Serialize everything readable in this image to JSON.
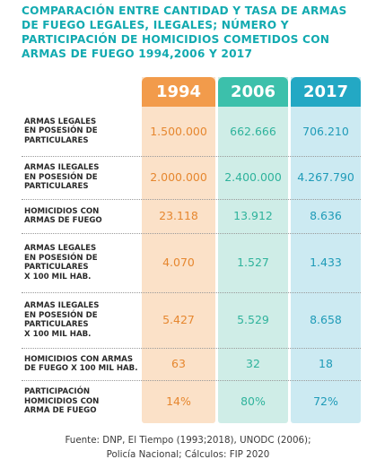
{
  "title": "COMPARACIÓN ENTRE CANTIDAD Y TASA DE ARMAS DE FUEGO LEGALES, ILEGALES; NÚMERO Y PARTICIPACIÓN DE HOMICIDIOS COMETIDOS CON ARMAS DE FUEGO 1994,2006 Y 2017",
  "colors": {
    "title": "#12aab0",
    "col_1994_header": "#f29b4b",
    "col_2006_header": "#3cc0ab",
    "col_2017_header": "#23a8c4",
    "col_1994_bg": "#fbe1c8",
    "col_2006_bg": "#cfede7",
    "col_2017_bg": "#cceaf2"
  },
  "chart_data": {
    "type": "table",
    "columns": [
      "1994",
      "2006",
      "2017"
    ],
    "rows": [
      {
        "label": "ARMAS LEGALES EN POSESIÓN DE PARTICULARES",
        "values": [
          "1.500.000",
          "662.666",
          "706.210"
        ]
      },
      {
        "label": "ARMAS ILEGALES EN POSESIÓN DE PARTICULARES",
        "values": [
          "2.000.000",
          "2.400.000",
          "4.267.790"
        ]
      },
      {
        "label": "HOMICIDIOS CON ARMAS DE FUEGO",
        "values": [
          "23.118",
          "13.912",
          "8.636"
        ]
      },
      {
        "label": "ARMAS LEGALES EN POSESIÓN DE PARTICULARES X 100 MIL HAB.",
        "values": [
          "4.070",
          "1.527",
          "1.433"
        ]
      },
      {
        "label": "ARMAS ILEGALES EN POSESIÓN DE PARTICULARES X 100 MIL HAB.",
        "values": [
          "5.427",
          "5.529",
          "8.658"
        ]
      },
      {
        "label": "HOMICIDIOS CON ARMAS DE FUEGO X 100 MIL HAB.",
        "values": [
          "63",
          "32",
          "18"
        ]
      },
      {
        "label": "PARTICIPACIÓN HOMICIDIOS CON ARMA DE FUEGO",
        "values": [
          "14%",
          "80%",
          "72%"
        ]
      }
    ]
  },
  "label_lines": [
    [
      "ARMAS LEGALES",
      "EN POSESIÓN DE",
      "PARTICULARES"
    ],
    [
      "ARMAS ILEGALES",
      "EN POSESIÓN DE",
      "PARTICULARES"
    ],
    [
      "HOMICIDIOS CON",
      "ARMAS DE FUEGO"
    ],
    [
      "ARMAS LEGALES",
      "EN POSESIÓN DE",
      "PARTICULARES",
      "X 100 MIL HAB."
    ],
    [
      "ARMAS ILEGALES",
      "EN POSESIÓN DE",
      "PARTICULARES",
      "X 100 MIL HAB."
    ],
    [
      "HOMICIDIOS CON ARMAS",
      "DE FUEGO X 100 MIL HAB."
    ],
    [
      "PARTICIPACIÓN",
      "HOMICIDIOS CON",
      "ARMA DE FUEGO"
    ]
  ],
  "source_lines": [
    "Fuente: DNP, El Tiempo (1993;2018), UNODC (2006);",
    "Policía Nacional; Cálculos: FIP 2020"
  ]
}
